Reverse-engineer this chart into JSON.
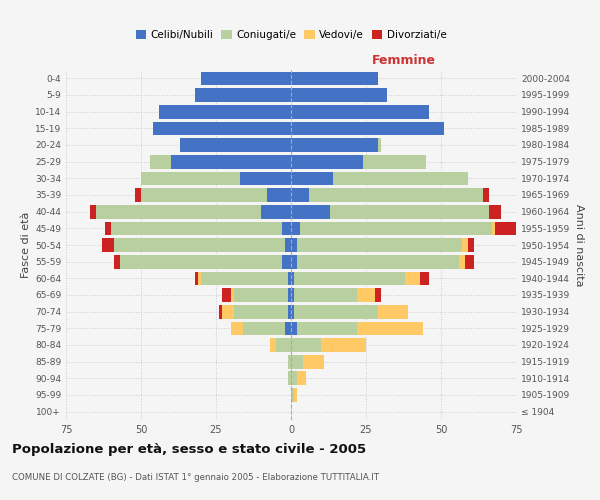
{
  "age_groups": [
    "100+",
    "95-99",
    "90-94",
    "85-89",
    "80-84",
    "75-79",
    "70-74",
    "65-69",
    "60-64",
    "55-59",
    "50-54",
    "45-49",
    "40-44",
    "35-39",
    "30-34",
    "25-29",
    "20-24",
    "15-19",
    "10-14",
    "5-9",
    "0-4"
  ],
  "birth_years": [
    "≤ 1904",
    "1905-1909",
    "1910-1914",
    "1915-1919",
    "1920-1924",
    "1925-1929",
    "1930-1934",
    "1935-1939",
    "1940-1944",
    "1945-1949",
    "1950-1954",
    "1955-1959",
    "1960-1964",
    "1965-1969",
    "1970-1974",
    "1975-1979",
    "1980-1984",
    "1985-1989",
    "1990-1994",
    "1995-1999",
    "2000-2004"
  ],
  "colors": {
    "celibi": "#4472c4",
    "coniugati": "#b8cfa0",
    "vedovi": "#ffc966",
    "divorziati": "#cc2222"
  },
  "males": {
    "celibi": [
      0,
      0,
      0,
      0,
      0,
      2,
      1,
      1,
      1,
      3,
      2,
      3,
      10,
      8,
      17,
      40,
      37,
      46,
      44,
      32,
      30
    ],
    "coniugati": [
      0,
      0,
      1,
      1,
      5,
      14,
      18,
      18,
      29,
      54,
      57,
      57,
      55,
      42,
      33,
      7,
      0,
      0,
      0,
      0,
      0
    ],
    "vedovi": [
      0,
      0,
      0,
      0,
      2,
      4,
      4,
      1,
      1,
      0,
      0,
      0,
      0,
      0,
      0,
      0,
      0,
      0,
      0,
      0,
      0
    ],
    "divorziati": [
      0,
      0,
      0,
      0,
      0,
      0,
      1,
      3,
      1,
      2,
      4,
      2,
      2,
      2,
      0,
      0,
      0,
      0,
      0,
      0,
      0
    ]
  },
  "females": {
    "celibi": [
      0,
      0,
      0,
      0,
      0,
      2,
      1,
      1,
      1,
      2,
      2,
      3,
      13,
      6,
      14,
      24,
      29,
      51,
      46,
      32,
      29
    ],
    "coniugati": [
      0,
      1,
      2,
      4,
      10,
      20,
      28,
      21,
      37,
      54,
      55,
      64,
      53,
      58,
      45,
      21,
      1,
      0,
      0,
      0,
      0
    ],
    "vedovi": [
      0,
      1,
      3,
      7,
      15,
      22,
      10,
      6,
      5,
      2,
      2,
      1,
      0,
      0,
      0,
      0,
      0,
      0,
      0,
      0,
      0
    ],
    "divorziati": [
      0,
      0,
      0,
      0,
      0,
      0,
      0,
      2,
      3,
      3,
      2,
      9,
      4,
      2,
      0,
      0,
      0,
      0,
      0,
      0,
      0
    ]
  },
  "xlim": 75,
  "title": "Popolazione per età, sesso e stato civile - 2005",
  "subtitle": "COMUNE DI COLZATE (BG) - Dati ISTAT 1° gennaio 2005 - Elaborazione TUTTITALIA.IT",
  "ylabel_left": "Fasce di età",
  "ylabel_right": "Anni di nascita",
  "xlabel_right": "Femmine",
  "bg_color": "#f5f5f5",
  "grid_color": "#cccccc"
}
